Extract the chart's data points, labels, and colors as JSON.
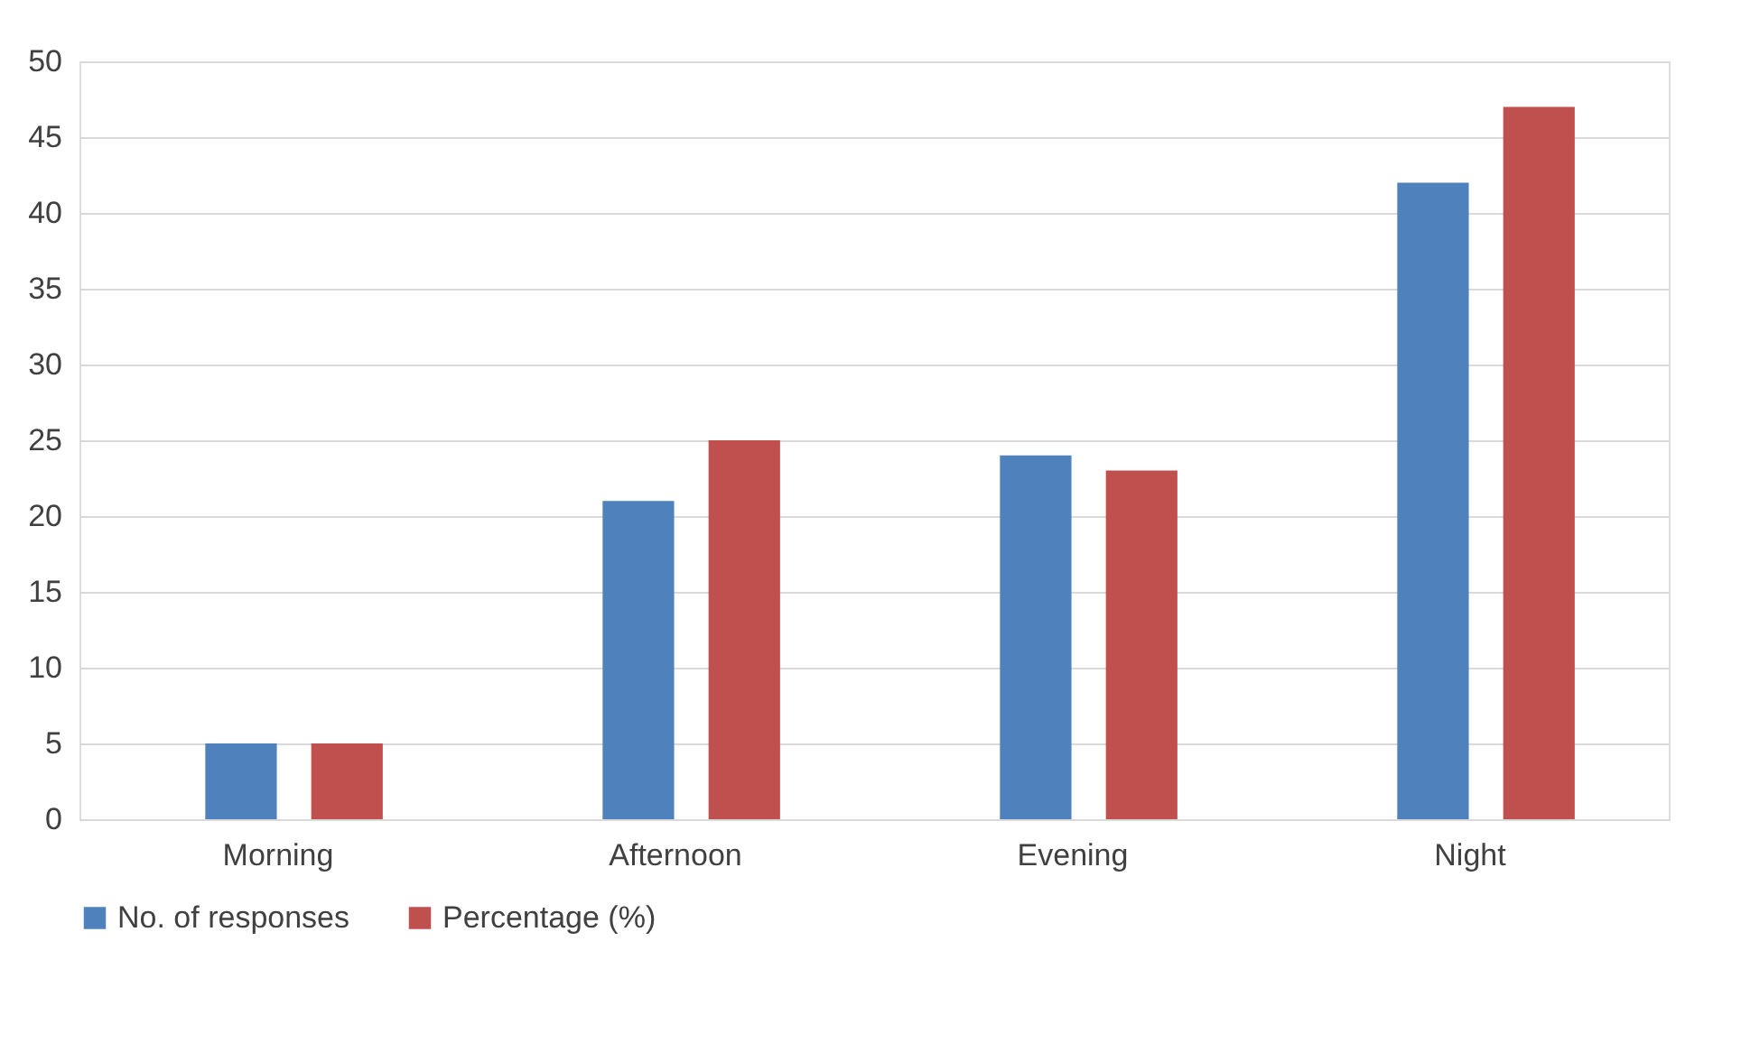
{
  "chart_data": {
    "type": "bar",
    "categories": [
      "Morning",
      "Afternoon",
      "Evening",
      "Night"
    ],
    "series": [
      {
        "name": "No. of responses",
        "color": "#4f81bd",
        "values": [
          5,
          21,
          24,
          42
        ]
      },
      {
        "name": "Percentage (%)",
        "color": "#c0504d",
        "values": [
          5,
          25,
          23,
          47
        ]
      }
    ],
    "ylim": [
      0,
      50
    ],
    "yticks": [
      0,
      5,
      10,
      15,
      20,
      25,
      30,
      35,
      40,
      45,
      50
    ],
    "grid": "y",
    "legend": "bottom"
  }
}
